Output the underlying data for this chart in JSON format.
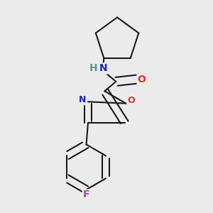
{
  "bg_color": "#ebebeb",
  "bond_color": "#1a1a1a",
  "bond_width": 1.5,
  "atom_colors": {
    "N": "#2020c8",
    "O_amide": "#e03030",
    "O_ring": "#e03030",
    "N_ring": "#2020c8",
    "F": "#bb44bb",
    "H": "#4a9a9a"
  },
  "font_size_atom": 10,
  "font_size_small": 9
}
